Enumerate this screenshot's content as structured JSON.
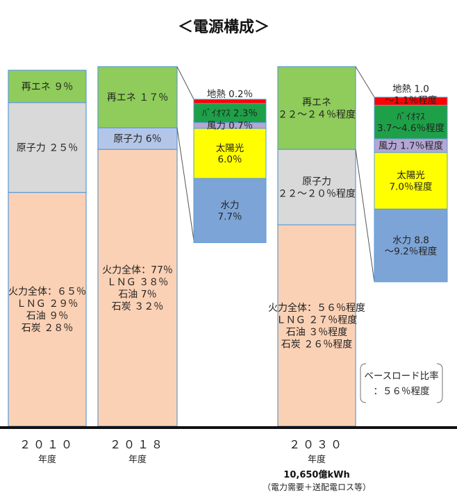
{
  "title": "＜電源構成＞",
  "chart_data": {
    "type": "bar",
    "stacked": true,
    "categories": [
      {
        "year": "２０１０",
        "unit": "年度"
      },
      {
        "year": "２０１８",
        "unit": "年度"
      },
      {
        "year": "２０３０",
        "unit": "年度",
        "note1": "10,650億kWh",
        "note2": "（電力需要＋送配電ロス等）"
      }
    ],
    "bars": [
      {
        "segments": [
          {
            "name": "fossil",
            "value": 65,
            "color": "#fbd1b5",
            "lines": [
              "火力全体：６５％",
              "ＬＮＧ ２９％",
              "石油 ９％",
              "石炭 ２８％"
            ]
          },
          {
            "name": "nuclear",
            "value": 25,
            "color": "#d9d9d9",
            "lines": [
              "原子力 ２５％"
            ]
          },
          {
            "name": "renewable",
            "value": 9,
            "color": "#8fcc5b",
            "lines": [
              "再エネ ９％"
            ]
          }
        ]
      },
      {
        "segments": [
          {
            "name": "fossil",
            "value": 77,
            "color": "#fbd1b5",
            "lines": [
              "火力全体：77％",
              "ＬＮＧ ３８％",
              "石油 7％",
              "石炭 ３２％"
            ]
          },
          {
            "name": "nuclear",
            "value": 6,
            "color": "#b4c6e7",
            "lines": [
              "原子力 6％"
            ]
          },
          {
            "name": "renewable",
            "value": 17,
            "color": "#8fcc5b",
            "lines": [
              "再エネ １７％"
            ]
          }
        ]
      },
      {
        "segments": [
          {
            "name": "fossil",
            "value": 56,
            "color": "#fbd1b5",
            "lines": [
              "火力全体：５６％程度",
              "ＬＮＧ ２７％程度",
              "石油 ３％程度",
              "石炭 ２６％程度"
            ]
          },
          {
            "name": "nuclear",
            "value": 21,
            "color": "#d9d9d9",
            "lines": [
              "原子力",
              "２２～２０％程度"
            ]
          },
          {
            "name": "renewable",
            "value": 23,
            "color": "#8fcc5b",
            "lines": [
              "再エネ",
              "２２～２４％程度"
            ]
          }
        ]
      }
    ],
    "breakdowns": [
      {
        "of_bar": 1,
        "segments": [
          {
            "name": "geothermal",
            "value": 0.2,
            "color": "#ff0000",
            "label": "地熱 0.2％",
            "label_outside": true
          },
          {
            "name": "biomass",
            "value": 2.3,
            "color": "#1ea048",
            "label": "ﾊﾞｲｵﾏｽ 2.3％"
          },
          {
            "name": "wind",
            "value": 0.7,
            "color": "#b4a7d6",
            "label": "風力 0.7％"
          },
          {
            "name": "solar",
            "value": 6.0,
            "color": "#ffff00",
            "label": "太陽光\n6.0％"
          },
          {
            "name": "hydro",
            "value": 7.7,
            "color": "#7da4d6",
            "label": "水力\n7.7％"
          }
        ]
      },
      {
        "of_bar": 2,
        "segments": [
          {
            "name": "geothermal",
            "value": 1.0,
            "color": "#ff0000",
            "label": "地熱 1.0\n～1.1％程度",
            "label_outside": true
          },
          {
            "name": "biomass",
            "value": 4.15,
            "color": "#1ea048",
            "label": "ﾊﾞｲｵﾏｽ\n3.7～4.6％程度"
          },
          {
            "name": "wind",
            "value": 1.7,
            "color": "#b4a7d6",
            "label": "風力 1.7％程度"
          },
          {
            "name": "solar",
            "value": 7.0,
            "color": "#ffff00",
            "label": "太陽光\n7.0％程度"
          },
          {
            "name": "hydro",
            "value": 9.0,
            "color": "#7da4d6",
            "label": "水力 8.8\n～9.2％程度"
          }
        ]
      }
    ],
    "annotation": {
      "lines": [
        "ベースロード比率",
        "：５６％程度"
      ]
    }
  }
}
